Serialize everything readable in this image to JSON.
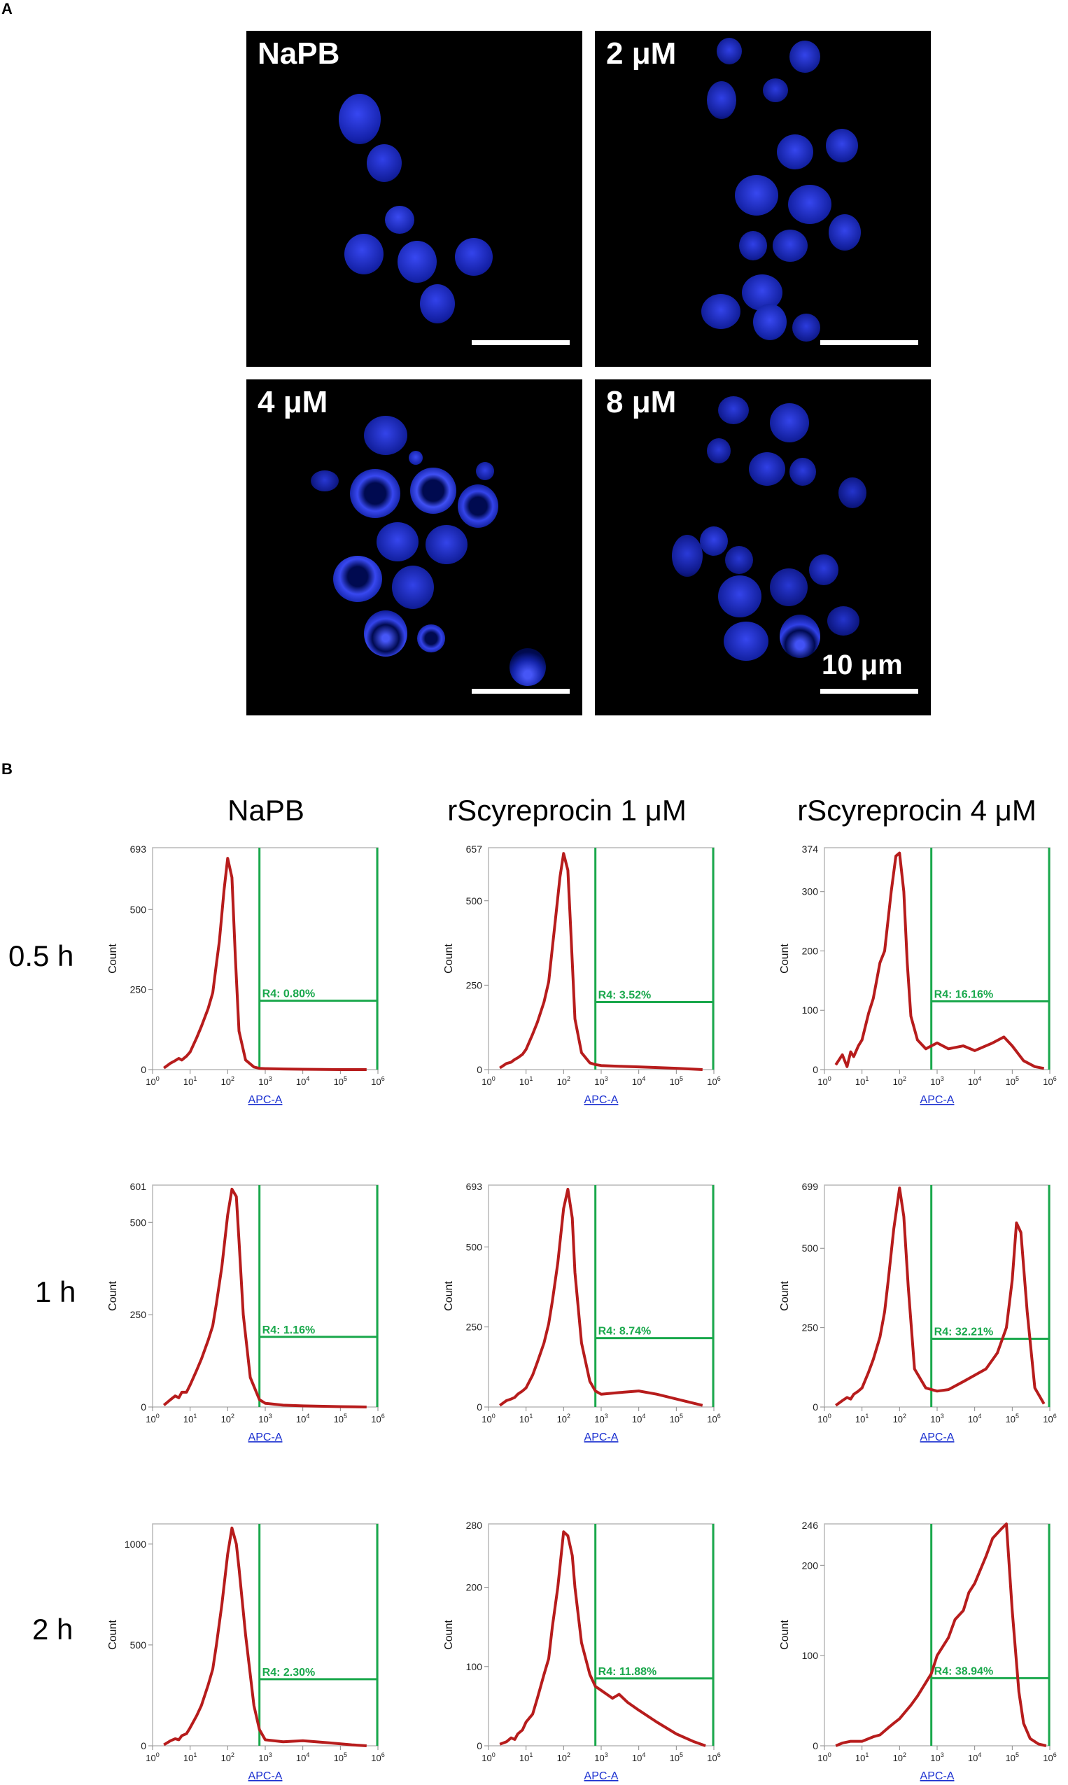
{
  "panel_a": {
    "letter": "A",
    "scale_text": "10 μm",
    "images": [
      {
        "label": "NaPB"
      },
      {
        "label": "2 μM"
      },
      {
        "label": "4 μM"
      },
      {
        "label": "8 μM"
      }
    ]
  },
  "panel_b": {
    "letter": "B",
    "col_titles": [
      "NaPB",
      "rScyreprocin 1 μM",
      "rScyreprocin 4 μM"
    ],
    "row_titles": [
      "0.5 h",
      "1 h",
      "2 h"
    ]
  },
  "colors": {
    "curve": "#b71c1c",
    "gate": "#1aa84c",
    "axis_link": "#1a2fd0",
    "micro_bg": "#000000",
    "cell": "#1e2bd6"
  },
  "chart_data": [
    {
      "type": "line",
      "row": "0.5 h",
      "column": "NaPB",
      "xlabel": "APC-A",
      "ylabel": "Count",
      "x_scale": "log",
      "xlim": [
        1,
        1000000
      ],
      "ymax_label": "693",
      "ymax": 693,
      "yticks": [
        0,
        250,
        500
      ],
      "gate_label": "R4: 0.80%",
      "gate_start": 700,
      "gate_end": 1000000,
      "gate_level": 215,
      "x": [
        2,
        3,
        4,
        5,
        6,
        8,
        10,
        15,
        20,
        30,
        40,
        50,
        60,
        80,
        100,
        130,
        160,
        200,
        300,
        500,
        700,
        1000,
        3000,
        10000,
        100000,
        500000
      ],
      "y": [
        5,
        20,
        28,
        35,
        30,
        42,
        55,
        100,
        135,
        190,
        240,
        330,
        400,
        560,
        660,
        600,
        350,
        120,
        30,
        8,
        4,
        3,
        2,
        1,
        0,
        0
      ]
    },
    {
      "type": "line",
      "row": "0.5 h",
      "column": "rScyreprocin 1 μM",
      "xlabel": "APC-A",
      "ylabel": "Count",
      "x_scale": "log",
      "xlim": [
        1,
        1000000
      ],
      "ymax_label": "657",
      "ymax": 657,
      "yticks": [
        0,
        250,
        500
      ],
      "gate_label": "R4: 3.52%",
      "gate_start": 700,
      "gate_end": 1000000,
      "gate_level": 200,
      "x": [
        2,
        3,
        4,
        5,
        6,
        8,
        10,
        15,
        20,
        30,
        40,
        50,
        60,
        80,
        100,
        130,
        160,
        200,
        300,
        500,
        700,
        1000,
        3000,
        10000,
        100000,
        500000
      ],
      "y": [
        5,
        18,
        22,
        30,
        35,
        45,
        60,
        105,
        140,
        200,
        260,
        360,
        440,
        570,
        640,
        590,
        380,
        150,
        50,
        20,
        15,
        12,
        10,
        8,
        4,
        0
      ]
    },
    {
      "type": "line",
      "row": "0.5 h",
      "column": "rScyreprocin 4 μM",
      "xlabel": "APC-A",
      "ylabel": "Count",
      "x_scale": "log",
      "xlim": [
        1,
        1000000
      ],
      "ymax_label": "374",
      "ymax": 374,
      "yticks": [
        0,
        100,
        200,
        300
      ],
      "gate_label": "R4: 16.16%",
      "gate_start": 700,
      "gate_end": 1000000,
      "gate_level": 115,
      "x": [
        2,
        3,
        4,
        5,
        6,
        8,
        10,
        15,
        20,
        30,
        40,
        60,
        80,
        100,
        130,
        160,
        200,
        300,
        500,
        1000,
        2000,
        5000,
        10000,
        30000,
        60000,
        100000,
        200000,
        400000,
        700000
      ],
      "y": [
        8,
        25,
        5,
        30,
        22,
        40,
        50,
        95,
        120,
        180,
        200,
        300,
        360,
        365,
        300,
        180,
        90,
        50,
        35,
        45,
        35,
        40,
        32,
        45,
        55,
        40,
        15,
        5,
        2
      ]
    },
    {
      "type": "line",
      "row": "1 h",
      "column": "NaPB",
      "xlabel": "APC-A",
      "ylabel": "Count",
      "x_scale": "log",
      "xlim": [
        1,
        1000000
      ],
      "ymax_label": "601",
      "ymax": 601,
      "yticks": [
        0,
        250,
        500
      ],
      "gate_label": "R4: 1.16%",
      "gate_start": 700,
      "gate_end": 1000000,
      "gate_level": 190,
      "x": [
        2,
        3,
        4,
        5,
        6,
        8,
        10,
        15,
        20,
        30,
        40,
        50,
        70,
        100,
        130,
        170,
        200,
        260,
        400,
        700,
        1000,
        3000,
        10000,
        100000,
        500000
      ],
      "y": [
        5,
        20,
        30,
        25,
        40,
        40,
        60,
        100,
        130,
        180,
        220,
        280,
        380,
        520,
        590,
        570,
        450,
        250,
        80,
        20,
        10,
        5,
        3,
        1,
        0
      ]
    },
    {
      "type": "line",
      "row": "1 h",
      "column": "rScyreprocin 1 μM",
      "xlabel": "APC-A",
      "ylabel": "Count",
      "x_scale": "log",
      "xlim": [
        1,
        1000000
      ],
      "ymax_label": "693",
      "ymax": 693,
      "yticks": [
        0,
        250,
        500
      ],
      "gate_label": "R4: 8.74%",
      "gate_start": 700,
      "gate_end": 1000000,
      "gate_level": 215,
      "x": [
        2,
        3,
        4,
        5,
        6,
        8,
        10,
        15,
        20,
        30,
        40,
        50,
        70,
        100,
        130,
        170,
        200,
        300,
        500,
        700,
        1000,
        3000,
        10000,
        30000,
        100000,
        500000
      ],
      "y": [
        5,
        20,
        25,
        30,
        40,
        50,
        60,
        100,
        140,
        200,
        260,
        330,
        450,
        620,
        680,
        590,
        420,
        200,
        80,
        50,
        40,
        45,
        50,
        40,
        25,
        5
      ]
    },
    {
      "type": "line",
      "row": "1 h",
      "column": "rScyreprocin 4 μM",
      "xlabel": "APC-A",
      "ylabel": "Count",
      "x_scale": "log",
      "xlim": [
        1,
        1000000
      ],
      "ymax_label": "699",
      "ymax": 699,
      "yticks": [
        0,
        250,
        500
      ],
      "gate_label": "R4: 32.21%",
      "gate_start": 700,
      "gate_end": 1000000,
      "gate_level": 215,
      "x": [
        2,
        3,
        4,
        5,
        6,
        8,
        10,
        15,
        20,
        30,
        40,
        50,
        70,
        100,
        130,
        170,
        250,
        500,
        1000,
        2000,
        5000,
        10000,
        20000,
        40000,
        70000,
        100000,
        130000,
        170000,
        250000,
        400000,
        700000
      ],
      "y": [
        5,
        20,
        30,
        25,
        40,
        50,
        60,
        110,
        150,
        220,
        300,
        400,
        560,
        690,
        600,
        380,
        120,
        60,
        50,
        55,
        80,
        100,
        120,
        170,
        250,
        400,
        580,
        550,
        300,
        60,
        10
      ]
    },
    {
      "type": "line",
      "row": "2 h",
      "column": "NaPB",
      "xlabel": "APC-A",
      "ylabel": "Count",
      "x_scale": "log",
      "xlim": [
        1,
        1000000
      ],
      "ymax_label": "",
      "ymax": 1100,
      "yticks": [
        0,
        500,
        1000
      ],
      "gate_label": "R4: 2.30%",
      "gate_start": 700,
      "gate_end": 1000000,
      "gate_level": 330,
      "x": [
        2,
        3,
        4,
        5,
        6,
        8,
        10,
        15,
        20,
        30,
        40,
        50,
        70,
        100,
        130,
        170,
        200,
        300,
        500,
        700,
        1000,
        3000,
        10000,
        50000,
        200000,
        500000
      ],
      "y": [
        5,
        25,
        35,
        30,
        50,
        60,
        90,
        150,
        200,
        300,
        380,
        500,
        700,
        950,
        1080,
        1000,
        880,
        550,
        200,
        80,
        30,
        20,
        25,
        15,
        5,
        0
      ]
    },
    {
      "type": "line",
      "row": "2 h",
      "column": "rScyreprocin 1 μM",
      "xlabel": "APC-A",
      "ylabel": "Count",
      "x_scale": "log",
      "xlim": [
        1,
        1000000
      ],
      "ymax_label": "280",
      "ymax": 280,
      "yticks": [
        0,
        100,
        200
      ],
      "gate_label": "R4: 11.88%",
      "gate_start": 700,
      "gate_end": 1000000,
      "gate_level": 85,
      "x": [
        2,
        3,
        4,
        5,
        6,
        8,
        10,
        15,
        20,
        30,
        40,
        50,
        70,
        100,
        130,
        170,
        200,
        300,
        500,
        700,
        1000,
        2000,
        3000,
        5000,
        10000,
        30000,
        100000,
        300000,
        600000
      ],
      "y": [
        2,
        5,
        10,
        8,
        15,
        20,
        30,
        40,
        60,
        90,
        110,
        150,
        200,
        270,
        265,
        240,
        200,
        130,
        90,
        75,
        70,
        60,
        65,
        55,
        45,
        30,
        15,
        5,
        0
      ]
    },
    {
      "type": "line",
      "row": "2 h",
      "column": "rScyreprocin 4 μM",
      "xlabel": "APC-A",
      "ylabel": "Count",
      "x_scale": "log",
      "xlim": [
        1,
        1000000
      ],
      "ymax_label": "246",
      "ymax": 246,
      "yticks": [
        0,
        100,
        200
      ],
      "gate_label": "R4: 38.94%",
      "gate_start": 700,
      "gate_end": 1000000,
      "gate_level": 75,
      "x": [
        2,
        3,
        5,
        10,
        20,
        30,
        50,
        70,
        100,
        200,
        300,
        500,
        700,
        1000,
        2000,
        3000,
        5000,
        7000,
        10000,
        20000,
        30000,
        50000,
        70000,
        100000,
        150000,
        200000,
        300000,
        500000,
        800000
      ],
      "y": [
        0,
        3,
        5,
        5,
        10,
        12,
        20,
        25,
        30,
        45,
        55,
        70,
        80,
        100,
        120,
        140,
        150,
        170,
        180,
        210,
        230,
        240,
        246,
        150,
        60,
        25,
        8,
        2,
        0
      ]
    }
  ]
}
